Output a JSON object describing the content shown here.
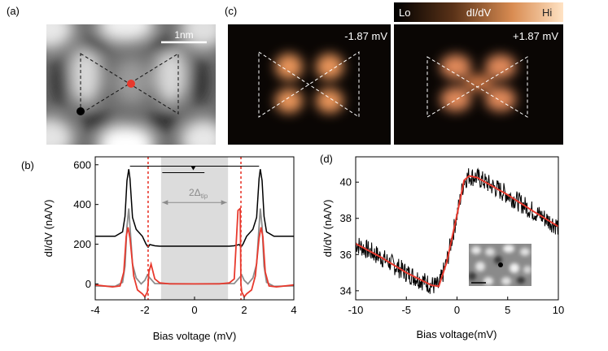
{
  "panel_labels": {
    "a": "(a)",
    "b": "(b)",
    "c": "(c)",
    "d": "(d)"
  },
  "panel_a": {
    "scalebar_label": "1nm"
  },
  "panel_c": {
    "colorbar": {
      "lo": "Lo",
      "mid": "dI/dV",
      "hi": "Hi"
    },
    "left_label": "-1.87 mV",
    "right_label": "+1.87 mV"
  },
  "chart_data": [
    {
      "panel": "b",
      "type": "line",
      "xlabel": "Bias voltage (mV)",
      "ylabel": "dI/dV (nA/V)",
      "xlim": [
        -4,
        4
      ],
      "ylim": [
        -80,
        640
      ],
      "xticks": [
        -4,
        -2,
        0,
        2,
        4
      ],
      "yticks": [
        0,
        200,
        400,
        600
      ],
      "gap_label": "2Δ",
      "gap_label_sub": "tip",
      "gap_region": [
        -1.35,
        1.35
      ],
      "red_dashed_lines": [
        -1.87,
        1.87
      ],
      "colors": {
        "black": "#000000",
        "gray": "#8c8c8c",
        "red": "#e8392d",
        "shade": "#dcdcdc"
      },
      "series": [
        {
          "color": "black",
          "x": [
            -4,
            -3.2,
            -2.9,
            -2.8,
            -2.72,
            -2.65,
            -2.6,
            -2.5,
            -2.35,
            -2.1,
            -1.95,
            -1.87,
            -1.8,
            -1.6,
            -1.4,
            0,
            1.4,
            1.6,
            1.8,
            1.87,
            1.95,
            2.1,
            2.35,
            2.5,
            2.6,
            2.65,
            2.72,
            2.8,
            2.9,
            3.2,
            4
          ],
          "y": [
            240,
            240,
            262,
            340,
            520,
            578,
            530,
            335,
            275,
            240,
            200,
            185,
            198,
            192,
            190,
            190,
            190,
            192,
            198,
            185,
            200,
            240,
            275,
            335,
            530,
            578,
            520,
            340,
            262,
            240,
            240
          ]
        },
        {
          "color": "gray",
          "x": [
            -4,
            -3.2,
            -2.9,
            -2.8,
            -2.72,
            -2.65,
            -2.6,
            -2.5,
            -2.35,
            -2.15,
            -2,
            -1.9,
            -1.8,
            -1.6,
            0,
            1.6,
            1.8,
            1.9,
            2,
            2.15,
            2.35,
            2.5,
            2.6,
            2.65,
            2.72,
            2.8,
            2.9,
            3.2,
            4
          ],
          "y": [
            -10,
            -12,
            8,
            90,
            290,
            380,
            290,
            100,
            30,
            0,
            18,
            45,
            30,
            2,
            0,
            2,
            30,
            45,
            18,
            0,
            30,
            100,
            290,
            380,
            290,
            90,
            8,
            -12,
            -10
          ]
        },
        {
          "color": "red",
          "x": [
            -4,
            -3.3,
            -3.0,
            -2.85,
            -2.75,
            -2.68,
            -2.6,
            -2.45,
            -2.3,
            -2.1,
            -2.0,
            -1.9,
            -1.87,
            -1.84,
            -1.75,
            -1.6,
            -1.4,
            -1.0,
            0,
            1.0,
            1.4,
            1.6,
            1.75,
            1.84,
            1.87,
            1.9,
            2.0,
            2.1,
            2.3,
            2.45,
            2.6,
            2.68,
            2.75,
            2.85,
            3.0,
            3.3,
            4
          ],
          "y": [
            -5,
            -15,
            -10,
            60,
            240,
            285,
            230,
            40,
            -30,
            -50,
            -65,
            -40,
            0,
            60,
            100,
            25,
            5,
            0,
            0,
            0,
            5,
            25,
            370,
            380,
            0,
            -40,
            -65,
            -50,
            -30,
            40,
            230,
            285,
            240,
            60,
            -10,
            -15,
            -5
          ]
        }
      ]
    },
    {
      "panel": "d",
      "type": "line",
      "xlabel": "Bias voltage(mV)",
      "ylabel": "dI/dV (nA/V)",
      "xlim": [
        -10,
        10
      ],
      "ylim": [
        33.5,
        41.4
      ],
      "xticks": [
        -10,
        -5,
        0,
        5,
        10
      ],
      "yticks": [
        34,
        36,
        38,
        40
      ],
      "colors": {
        "raw": "#000000",
        "fit": "#e8392d"
      },
      "series": [
        {
          "color": "fit",
          "x": [
            -10,
            -7.5,
            -5,
            -2.5,
            -1.8,
            -1.0,
            0,
            0.7,
            1.2,
            2,
            5,
            7.5,
            10
          ],
          "y": [
            36.6,
            35.85,
            35.0,
            34.3,
            34.25,
            35.6,
            38.2,
            40.1,
            40.35,
            40.25,
            39.3,
            38.4,
            37.55
          ]
        }
      ],
      "noise_amplitude": 0.55
    }
  ]
}
